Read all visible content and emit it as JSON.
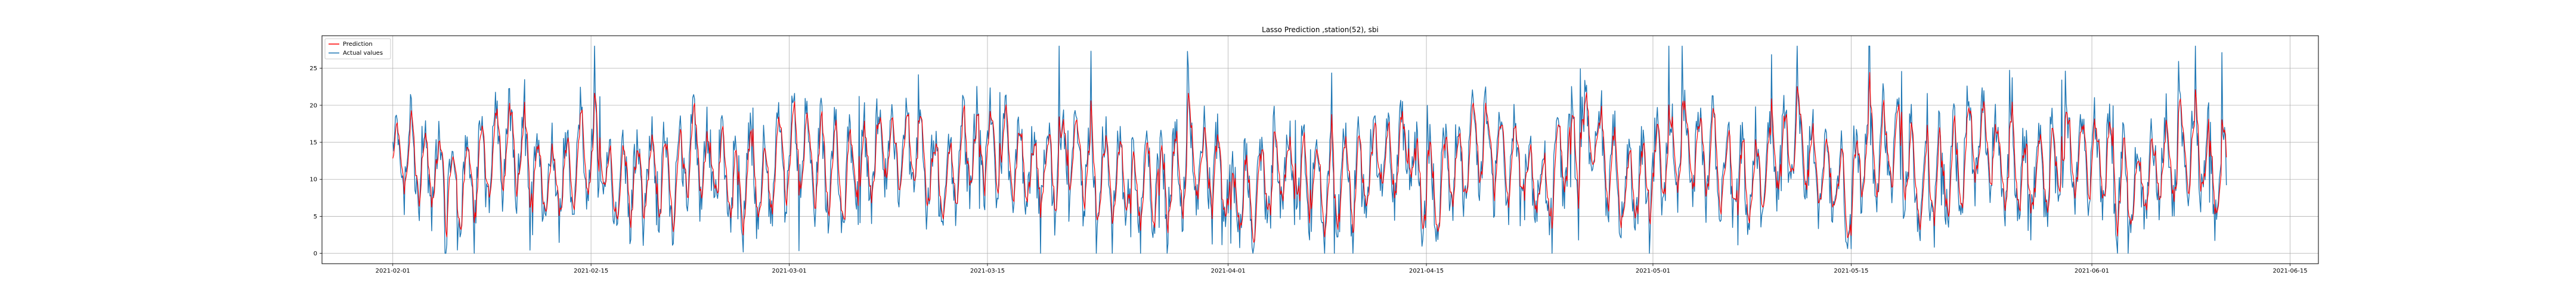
{
  "chart_data": {
    "type": "line",
    "title": "Lasso Prediction ,station(52), sbi",
    "xlabel": "",
    "ylabel": "",
    "x_start": "2021-02-01",
    "x_end": "2021-06-10",
    "xlim": [
      "2021-01-27",
      "2021-06-17"
    ],
    "ylim": [
      -1.4,
      29.4
    ],
    "xticks": [
      "2021-02-01",
      "2021-02-15",
      "2021-03-01",
      "2021-03-15",
      "2021-04-01",
      "2021-04-15",
      "2021-05-01",
      "2021-05-15",
      "2021-06-01",
      "2021-06-15"
    ],
    "yticks": [
      0,
      5,
      10,
      15,
      20,
      25
    ],
    "grid": true,
    "legend": "top-left",
    "series": [
      {
        "name": "Prediction",
        "color": "#ff0000"
      },
      {
        "name": "Actual values",
        "color": "#1f77b4"
      }
    ],
    "value_range": [
      0,
      28
    ],
    "typical_range": [
      3,
      22
    ]
  }
}
